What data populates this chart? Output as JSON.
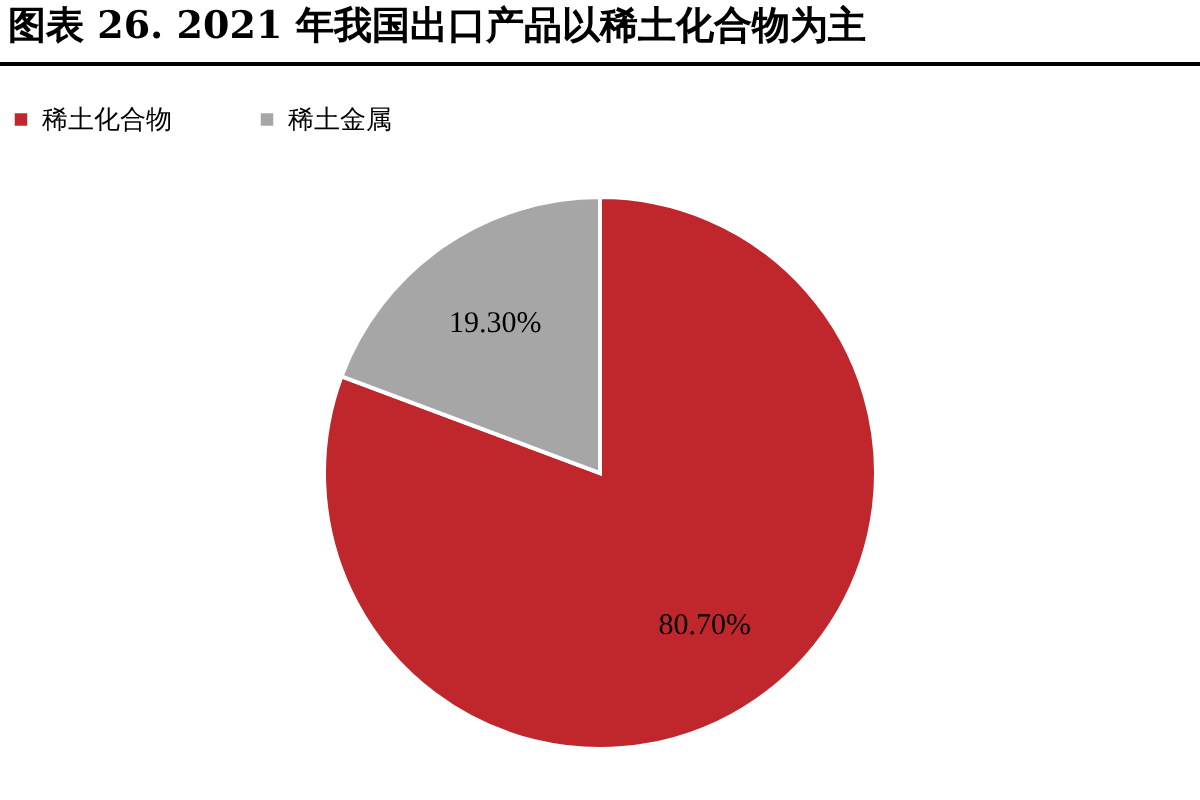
{
  "chart_data": {
    "type": "pie",
    "title": "图表 26. 2021 年我国出口产品以稀土化合物为主",
    "categories": [
      "稀土化合物",
      "稀土金属"
    ],
    "values": [
      80.7,
      19.3
    ],
    "colors": [
      "#c0272d",
      "#a6a6a6"
    ],
    "value_labels": [
      "80.70%",
      "19.30%"
    ],
    "legend": "top"
  }
}
